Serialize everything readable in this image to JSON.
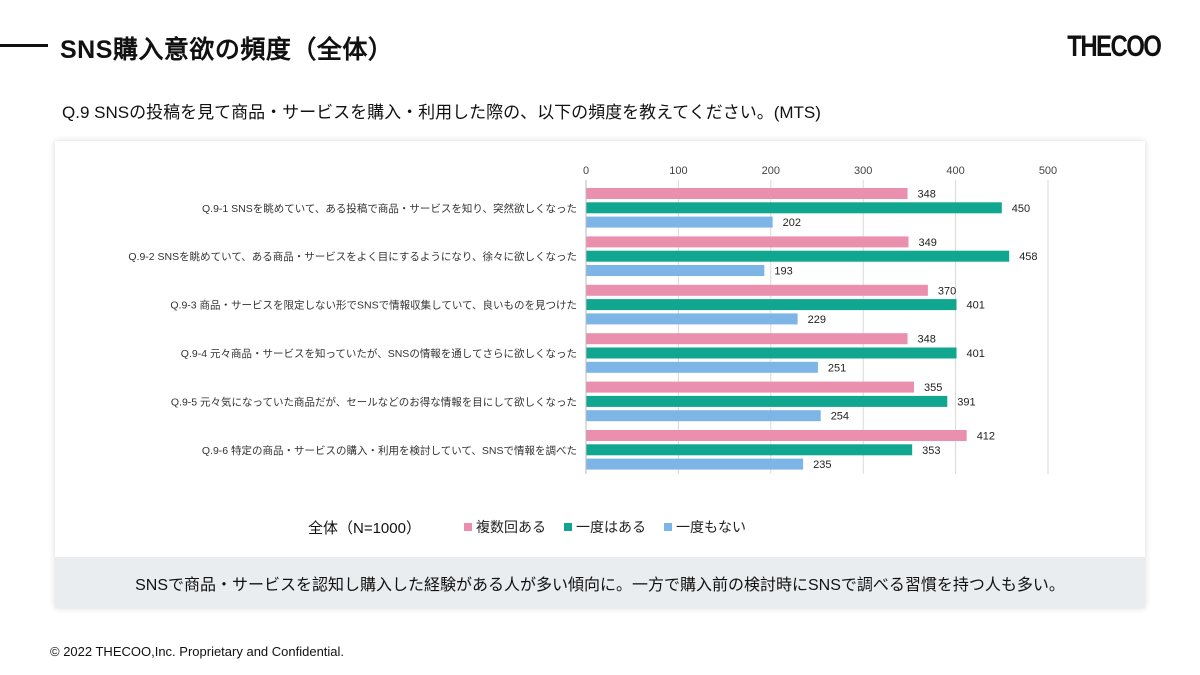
{
  "header": {
    "title": "SNS購入意欲の頻度（全体）",
    "logo": "THECOO"
  },
  "question": "Q.9 SNSの投稿を見て商品・サービスを購入・利用した際の、以下の頻度を教えてください。(MTS)",
  "summary": "SNSで商品・サービスを認知し購入した経験がある人が多い傾向に。一方で購入前の検討時にSNSで調べる習慣を持つ人も多い。",
  "footer": "© 2022 THECOO,Inc. Proprietary and Confidential.",
  "chart_data": {
    "type": "bar",
    "orientation": "horizontal",
    "title": "",
    "legend_title": "全体（N=1000）",
    "legend_position": "bottom",
    "xlim": [
      0,
      500
    ],
    "xticks": [
      0,
      100,
      200,
      300,
      400,
      500
    ],
    "grid": true,
    "categories": [
      "Q.9-1 SNSを眺めていて、ある投稿で商品・サービスを知り、突然欲しくなった",
      "Q.9-2 SNSを眺めていて、ある商品・サービスをよく目にするようになり、徐々に欲しくなった",
      "Q.9-3 商品・サービスを限定しない形でSNSで情報収集していて、良いものを見つけた",
      "Q.9-4 元々商品・サービスを知っていたが、SNSの情報を通してさらに欲しくなった",
      "Q.9-5 元々気になっていた商品だが、セールなどのお得な情報を目にして欲しくなった",
      "Q.9-6 特定の商品・サービスの購入・利用を検討していて、SNSで情報を調べた"
    ],
    "series": [
      {
        "name": "複数回ある",
        "color": "#ea8fae",
        "values": [
          348,
          349,
          370,
          348,
          355,
          412
        ]
      },
      {
        "name": "一度はある",
        "color": "#11a68f",
        "values": [
          450,
          458,
          401,
          401,
          391,
          353
        ]
      },
      {
        "name": "一度もない",
        "color": "#7db5e6",
        "values": [
          202,
          193,
          229,
          251,
          254,
          235
        ]
      }
    ]
  }
}
